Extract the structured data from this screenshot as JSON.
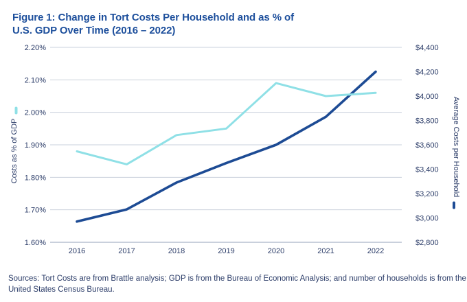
{
  "figure": {
    "title_line1": "Figure 1: Change in Tort Costs Per Household and as % of",
    "title_line2": "U.S. GDP Over Time (2016 – 2022)"
  },
  "sources": {
    "line1": "Sources: Tort Costs are from Brattle analysis; GDP is from the Bureau of Economic Analysis; and number of households is from the",
    "line2": "United States Census Bureau."
  },
  "chart_data": {
    "type": "line",
    "title": "Figure 1: Change in Tort Costs Per Household and as % of U.S. GDP Over Time (2016 – 2022)",
    "categories": [
      "2016",
      "2017",
      "2018",
      "2019",
      "2020",
      "2021",
      "2022"
    ],
    "series": [
      {
        "name": "Costs as % of GDP",
        "axis": "left",
        "color": "#8fe0e6",
        "values": [
          1.88,
          1.84,
          1.93,
          1.95,
          2.09,
          2.05,
          2.06
        ]
      },
      {
        "name": "Average Costs per Household",
        "axis": "right",
        "color": "#1d4b94",
        "values": [
          2970,
          3070,
          3290,
          3450,
          3600,
          3830,
          4200
        ]
      }
    ],
    "left_axis": {
      "label": "Costs as % of GDP",
      "min": 1.6,
      "max": 2.2,
      "step": 0.1,
      "tick_labels": [
        "2.20%",
        "2.10%",
        "2.00%",
        "1.90%",
        "1.80%",
        "1.70%",
        "1.60%"
      ]
    },
    "right_axis": {
      "label": "Average Costs per Household",
      "min": 2800,
      "max": 4400,
      "step": 200,
      "tick_labels": [
        "$4,400",
        "$4,200",
        "$4,000",
        "$3,800",
        "$3,600",
        "$3,400",
        "$3,200",
        "$3,000",
        "$2,800"
      ]
    },
    "grid": "horizontal",
    "legend": "color dashes beside each axis title",
    "colors": {
      "title": "#1d4f9c",
      "tick_text": "#2b3c68",
      "gridline": "#c9d0dc",
      "baseline": "#93a0b8",
      "gdp_line": "#8fe0e6",
      "household_line": "#1d4b94"
    }
  }
}
